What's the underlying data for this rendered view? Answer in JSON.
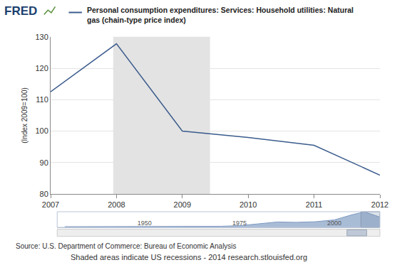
{
  "chart_data": [
    {
      "type": "line",
      "logo": "FRED",
      "title": "Personal consumption expenditures: Services: Household utilities: Natural gas (chain-type price index)",
      "ylabel": "(Index 2009=100)",
      "x": [
        2007,
        2008,
        2009,
        2010,
        2011,
        2012
      ],
      "values": [
        112.5,
        127.8,
        100,
        98,
        95.5,
        86
      ],
      "color": "#3b5c8d",
      "xlim": [
        2007,
        2012
      ],
      "xticks": [
        2007,
        2008,
        2009,
        2010,
        2011,
        2012
      ],
      "ylim": [
        80,
        130
      ],
      "yticks": [
        80,
        90,
        100,
        110,
        120,
        130
      ],
      "grid": true,
      "shaded": [
        {
          "start": 2007.95,
          "end": 2009.42
        }
      ],
      "source": "Source: U.S. Department of Commerce: Bureau of Economic Analysis",
      "note": "Shaded areas indicate US recessions - 2014 research.stlouisfed.org"
    },
    {
      "type": "area",
      "x": [
        1929,
        1935,
        1940,
        1945,
        1950,
        1955,
        1960,
        1965,
        1970,
        1975,
        1980,
        1985,
        1990,
        1995,
        2000,
        2005,
        2008,
        2012
      ],
      "values": [
        6,
        6,
        6,
        6,
        6,
        7,
        8,
        8,
        9,
        14,
        28,
        45,
        42,
        47,
        62,
        108,
        128,
        86
      ],
      "color": "#a9bcd6",
      "xlim": [
        1927,
        2012
      ],
      "xticks": [
        1950,
        1975,
        2000
      ],
      "ylim": [
        0,
        130
      ],
      "tick_labels": "x"
    }
  ]
}
